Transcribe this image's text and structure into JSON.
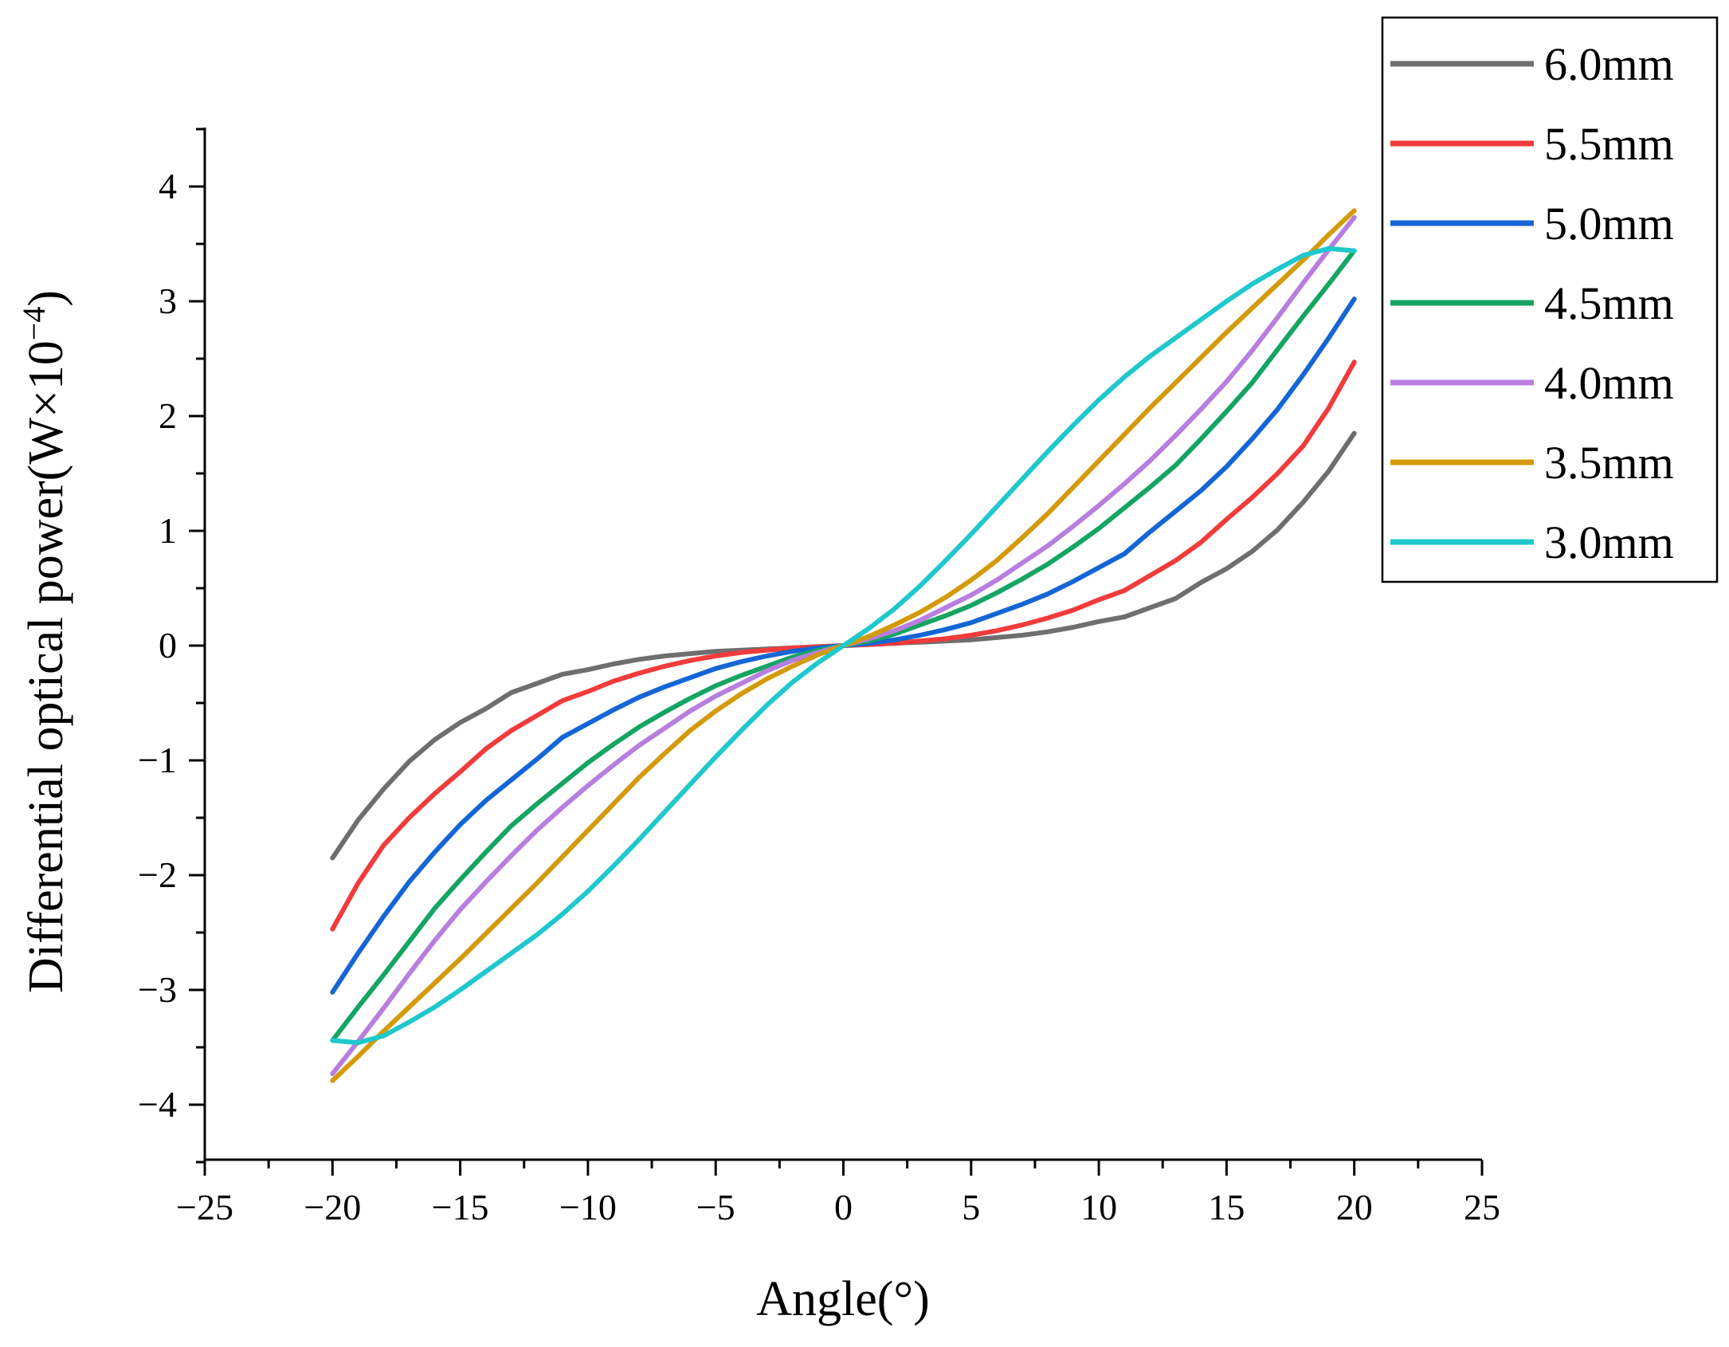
{
  "chart_data": {
    "type": "line",
    "title": "",
    "xlabel": "Angle(°)",
    "ylabel_main": "Differential optical power(W×10",
    "ylabel_exp": "−4",
    "ylabel_close": ")",
    "xlim": [
      -25,
      25
    ],
    "ylim": [
      -4.5,
      4.5
    ],
    "x_ticks": [
      -25,
      -20,
      -15,
      -10,
      -5,
      0,
      5,
      10,
      15,
      20,
      25
    ],
    "x_tick_labels": [
      "−25",
      "−20",
      "−15",
      "−10",
      "−5",
      "0",
      "5",
      "10",
      "15",
      "20",
      "25"
    ],
    "y_ticks": [
      -4,
      -3,
      -2,
      -1,
      0,
      1,
      2,
      3,
      4
    ],
    "y_tick_labels": [
      "−4",
      "−3",
      "−2",
      "−1",
      "0",
      "1",
      "2",
      "3",
      "4"
    ],
    "grid": false,
    "legend_position": "top-right",
    "x": [
      -20,
      -19,
      -18,
      -17,
      -16,
      -15,
      -14,
      -13,
      -12,
      -11,
      -10,
      -9,
      -8,
      -7,
      -6,
      -5,
      -4,
      -3,
      -2,
      -1,
      0,
      1,
      2,
      3,
      4,
      5,
      6,
      7,
      8,
      9,
      10,
      11,
      12,
      13,
      14,
      15,
      16,
      17,
      18,
      19,
      20
    ],
    "series": [
      {
        "name": "6.0mm",
        "color": "#6e6e6e",
        "values": [
          -1.85,
          -1.52,
          -1.25,
          -1.01,
          -0.82,
          -0.67,
          -0.55,
          -0.41,
          -0.33,
          -0.25,
          -0.21,
          -0.16,
          -0.12,
          -0.09,
          -0.07,
          -0.05,
          -0.04,
          -0.03,
          -0.02,
          -0.01,
          0,
          0.01,
          0.02,
          0.03,
          0.04,
          0.05,
          0.07,
          0.09,
          0.12,
          0.16,
          0.21,
          0.25,
          0.33,
          0.41,
          0.55,
          0.67,
          0.82,
          1.01,
          1.25,
          1.52,
          1.85
        ]
      },
      {
        "name": "5.5mm",
        "color": "#f23b3b",
        "values": [
          -2.47,
          -2.07,
          -1.74,
          -1.5,
          -1.29,
          -1.1,
          -0.9,
          -0.74,
          -0.61,
          -0.48,
          -0.4,
          -0.31,
          -0.24,
          -0.18,
          -0.13,
          -0.09,
          -0.06,
          -0.04,
          -0.02,
          -0.01,
          0,
          0.01,
          0.02,
          0.04,
          0.06,
          0.09,
          0.13,
          0.18,
          0.24,
          0.31,
          0.4,
          0.48,
          0.61,
          0.74,
          0.9,
          1.1,
          1.29,
          1.5,
          1.74,
          2.07,
          2.47
        ]
      },
      {
        "name": "5.0mm",
        "color": "#1466d6",
        "values": [
          -3.02,
          -2.68,
          -2.36,
          -2.06,
          -1.8,
          -1.56,
          -1.35,
          -1.17,
          -0.99,
          -0.8,
          -0.68,
          -0.56,
          -0.45,
          -0.36,
          -0.28,
          -0.2,
          -0.14,
          -0.09,
          -0.05,
          -0.02,
          0,
          0.02,
          0.05,
          0.09,
          0.14,
          0.2,
          0.28,
          0.36,
          0.45,
          0.56,
          0.68,
          0.8,
          0.99,
          1.17,
          1.35,
          1.56,
          1.8,
          2.06,
          2.36,
          2.68,
          3.02
        ]
      },
      {
        "name": "4.5mm",
        "color": "#14a562",
        "values": [
          -3.44,
          -3.15,
          -2.87,
          -2.58,
          -2.29,
          -2.04,
          -1.8,
          -1.57,
          -1.38,
          -1.2,
          -1.02,
          -0.86,
          -0.71,
          -0.58,
          -0.46,
          -0.35,
          -0.26,
          -0.18,
          -0.1,
          -0.04,
          0,
          0.04,
          0.1,
          0.18,
          0.26,
          0.35,
          0.46,
          0.58,
          0.71,
          0.86,
          1.02,
          1.2,
          1.38,
          1.57,
          1.8,
          2.04,
          2.29,
          2.58,
          2.87,
          3.15,
          3.44
        ]
      },
      {
        "name": "4.0mm",
        "color": "#b77ee0",
        "values": [
          -3.73,
          -3.45,
          -3.16,
          -2.86,
          -2.57,
          -2.3,
          -2.06,
          -1.83,
          -1.61,
          -1.41,
          -1.22,
          -1.04,
          -0.87,
          -0.72,
          -0.57,
          -0.44,
          -0.33,
          -0.22,
          -0.13,
          -0.06,
          0,
          0.06,
          0.13,
          0.22,
          0.33,
          0.44,
          0.57,
          0.72,
          0.87,
          1.04,
          1.22,
          1.41,
          1.61,
          1.83,
          2.06,
          2.3,
          2.57,
          2.86,
          3.16,
          3.45,
          3.73
        ]
      },
      {
        "name": "3.5mm",
        "color": "#d49a0a",
        "values": [
          -3.79,
          -3.58,
          -3.36,
          -3.15,
          -2.94,
          -2.73,
          -2.51,
          -2.29,
          -2.07,
          -1.84,
          -1.61,
          -1.38,
          -1.15,
          -0.94,
          -0.74,
          -0.57,
          -0.42,
          -0.29,
          -0.18,
          -0.08,
          0,
          0.08,
          0.18,
          0.29,
          0.42,
          0.57,
          0.74,
          0.94,
          1.15,
          1.38,
          1.61,
          1.84,
          2.07,
          2.29,
          2.51,
          2.73,
          2.94,
          3.15,
          3.36,
          3.58,
          3.79
        ]
      },
      {
        "name": "3.0mm",
        "color": "#1ec8cc",
        "values": [
          -3.44,
          -3.46,
          -3.4,
          -3.28,
          -3.15,
          -3.0,
          -2.84,
          -2.68,
          -2.52,
          -2.34,
          -2.14,
          -1.92,
          -1.69,
          -1.45,
          -1.21,
          -0.97,
          -0.74,
          -0.52,
          -0.32,
          -0.15,
          0,
          0.15,
          0.32,
          0.52,
          0.74,
          0.97,
          1.21,
          1.45,
          1.69,
          1.92,
          2.14,
          2.34,
          2.52,
          2.68,
          2.84,
          3.0,
          3.15,
          3.28,
          3.4,
          3.46,
          3.44
        ]
      }
    ]
  }
}
